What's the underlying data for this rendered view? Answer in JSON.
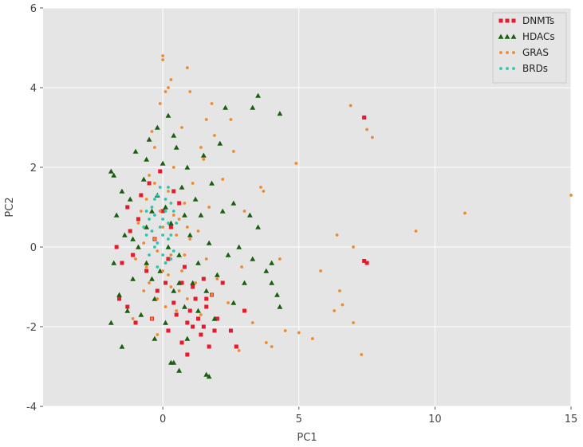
{
  "chart_data": {
    "type": "scatter",
    "title": "",
    "xlabel": "PC1",
    "ylabel": "PC2",
    "xlim": [
      -4.4,
      15
    ],
    "ylim": [
      -4,
      6
    ],
    "xticks": [
      0,
      5,
      10,
      15
    ],
    "yticks": [
      -4,
      -2,
      0,
      2,
      4,
      6
    ],
    "grid": true,
    "legend_position": "top-right",
    "background": "#e5e5e5",
    "series": [
      {
        "name": "DNMTs",
        "color": "#e8192c",
        "marker": "square",
        "points": [
          [
            -1.7,
            0.0
          ],
          [
            -1.5,
            -0.4
          ],
          [
            -1.6,
            -1.3
          ],
          [
            -1.3,
            -1.5
          ],
          [
            -1.1,
            -0.2
          ],
          [
            -0.9,
            0.7
          ],
          [
            -0.8,
            1.3
          ],
          [
            -0.6,
            -0.6
          ],
          [
            -0.5,
            1.6
          ],
          [
            -0.4,
            -1.8
          ],
          [
            -0.3,
            0.2
          ],
          [
            -0.2,
            -1.1
          ],
          [
            -0.1,
            1.9
          ],
          [
            0.1,
            -0.9
          ],
          [
            0.2,
            -2.1
          ],
          [
            0.3,
            0.5
          ],
          [
            0.4,
            -1.4
          ],
          [
            0.5,
            -1.7
          ],
          [
            0.6,
            1.1
          ],
          [
            0.7,
            -2.4
          ],
          [
            0.8,
            -0.5
          ],
          [
            0.9,
            -1.9
          ],
          [
            1.0,
            -1.6
          ],
          [
            1.1,
            -2.0
          ],
          [
            1.2,
            -1.3
          ],
          [
            1.3,
            -1.8
          ],
          [
            1.4,
            -2.2
          ],
          [
            1.5,
            -0.8
          ],
          [
            1.6,
            -1.5
          ],
          [
            1.7,
            -2.5
          ],
          [
            1.8,
            -1.2
          ],
          [
            2.0,
            -1.8
          ],
          [
            2.2,
            -0.9
          ],
          [
            2.5,
            -2.1
          ],
          [
            2.7,
            -2.5
          ],
          [
            3.0,
            -1.6
          ],
          [
            0.9,
            -2.7
          ],
          [
            1.5,
            -2.0
          ],
          [
            1.6,
            -1.3
          ],
          [
            -1.0,
            -1.9
          ],
          [
            -1.2,
            0.4
          ],
          [
            -1.3,
            1.0
          ],
          [
            0.0,
            0.9
          ],
          [
            0.2,
            -0.3
          ],
          [
            0.7,
            -0.9
          ],
          [
            0.4,
            1.4
          ],
          [
            1.1,
            -1.0
          ],
          [
            1.9,
            -2.1
          ],
          [
            7.4,
            3.25
          ],
          [
            7.5,
            -0.4
          ],
          [
            7.4,
            -0.35
          ]
        ]
      },
      {
        "name": "HDACs",
        "color": "#1a5e10",
        "marker": "triangle",
        "points": [
          [
            -1.9,
            1.9
          ],
          [
            -1.8,
            1.8
          ],
          [
            -1.7,
            0.8
          ],
          [
            -1.8,
            -0.4
          ],
          [
            -1.9,
            -1.9
          ],
          [
            -1.6,
            -1.2
          ],
          [
            -1.5,
            1.4
          ],
          [
            -1.4,
            0.3
          ],
          [
            -1.3,
            -1.6
          ],
          [
            -1.2,
            1.2
          ],
          [
            -1.1,
            -0.8
          ],
          [
            -1.0,
            2.4
          ],
          [
            -0.9,
            0.0
          ],
          [
            -0.8,
            -1.7
          ],
          [
            -0.7,
            1.7
          ],
          [
            -0.6,
            -0.4
          ],
          [
            -0.5,
            2.7
          ],
          [
            -0.4,
            0.9
          ],
          [
            -0.3,
            -1.3
          ],
          [
            -0.2,
            3.0
          ],
          [
            -0.1,
            -0.6
          ],
          [
            0.0,
            2.1
          ],
          [
            0.1,
            -1.9
          ],
          [
            0.2,
            3.3
          ],
          [
            0.3,
            0.6
          ],
          [
            0.4,
            -1.1
          ],
          [
            0.5,
            2.5
          ],
          [
            0.6,
            -0.2
          ],
          [
            0.7,
            1.5
          ],
          [
            0.8,
            -1.5
          ],
          [
            0.9,
            2.0
          ],
          [
            1.0,
            0.3
          ],
          [
            1.1,
            -0.9
          ],
          [
            1.2,
            1.2
          ],
          [
            1.3,
            -0.4
          ],
          [
            1.4,
            0.8
          ],
          [
            1.5,
            2.3
          ],
          [
            1.6,
            -1.1
          ],
          [
            1.7,
            0.1
          ],
          [
            1.8,
            1.6
          ],
          [
            2.0,
            -0.7
          ],
          [
            2.2,
            0.9
          ],
          [
            2.4,
            -0.2
          ],
          [
            2.6,
            1.1
          ],
          [
            2.8,
            0.0
          ],
          [
            3.0,
            -0.9
          ],
          [
            3.2,
            0.8
          ],
          [
            3.5,
            0.5
          ],
          [
            3.8,
            -0.6
          ],
          [
            4.0,
            -0.9
          ],
          [
            4.2,
            -1.2
          ],
          [
            4.3,
            -1.5
          ],
          [
            3.3,
            3.5
          ],
          [
            3.5,
            3.8
          ],
          [
            4.3,
            3.35
          ],
          [
            2.3,
            3.5
          ],
          [
            0.3,
            -2.9
          ],
          [
            0.6,
            -3.1
          ],
          [
            1.6,
            -3.2
          ],
          [
            1.7,
            -3.25
          ],
          [
            0.4,
            -2.9
          ],
          [
            -0.3,
            -2.3
          ],
          [
            -1.5,
            -2.5
          ],
          [
            -0.6,
            0.5
          ],
          [
            -0.2,
            1.3
          ],
          [
            0.2,
            0.0
          ],
          [
            0.8,
            0.8
          ],
          [
            -0.4,
            -0.8
          ],
          [
            0.1,
            1.0
          ],
          [
            0.6,
            -0.9
          ],
          [
            -1.1,
            0.2
          ],
          [
            1.3,
            -1.6
          ],
          [
            0.4,
            2.8
          ],
          [
            -0.6,
            2.2
          ],
          [
            0.9,
            -2.3
          ],
          [
            1.9,
            -1.8
          ],
          [
            2.6,
            -1.4
          ],
          [
            3.3,
            -0.3
          ],
          [
            4.0,
            -0.4
          ],
          [
            2.1,
            2.6
          ]
        ]
      },
      {
        "name": "GRAS",
        "color": "#f08a2a",
        "marker": "dot",
        "points": [
          [
            0.0,
            4.8
          ],
          [
            0.0,
            4.7
          ],
          [
            0.1,
            3.9
          ],
          [
            0.2,
            4.0
          ],
          [
            -0.1,
            3.6
          ],
          [
            0.3,
            4.2
          ],
          [
            0.9,
            4.5
          ],
          [
            1.0,
            3.9
          ],
          [
            1.8,
            3.6
          ],
          [
            -0.3,
            2.5
          ],
          [
            -0.5,
            1.8
          ],
          [
            -0.8,
            0.9
          ],
          [
            -1.0,
            -0.3
          ],
          [
            -0.7,
            -1.1
          ],
          [
            -0.4,
            -1.8
          ],
          [
            -0.2,
            -2.2
          ],
          [
            0.0,
            0.5
          ],
          [
            0.1,
            -0.4
          ],
          [
            0.2,
            1.4
          ],
          [
            0.3,
            -1.0
          ],
          [
            0.4,
            2.0
          ],
          [
            0.5,
            -1.6
          ],
          [
            0.6,
            0.7
          ],
          [
            0.7,
            -0.6
          ],
          [
            0.8,
            1.1
          ],
          [
            0.9,
            -1.3
          ],
          [
            1.0,
            0.2
          ],
          [
            1.1,
            1.6
          ],
          [
            1.2,
            -0.9
          ],
          [
            1.3,
            0.4
          ],
          [
            1.4,
            -1.7
          ],
          [
            1.5,
            2.2
          ],
          [
            1.6,
            -0.3
          ],
          [
            1.7,
            1.0
          ],
          [
            1.8,
            -1.2
          ],
          [
            1.9,
            2.8
          ],
          [
            2.0,
            -0.8
          ],
          [
            2.2,
            1.7
          ],
          [
            2.4,
            -1.4
          ],
          [
            2.6,
            2.4
          ],
          [
            2.8,
            -2.6
          ],
          [
            3.0,
            0.9
          ],
          [
            3.3,
            -1.9
          ],
          [
            3.6,
            1.5
          ],
          [
            4.0,
            -2.5
          ],
          [
            3.8,
            -2.4
          ],
          [
            4.5,
            -2.1
          ],
          [
            4.9,
            2.1
          ],
          [
            5.0,
            -2.15
          ],
          [
            5.5,
            -2.3
          ],
          [
            5.8,
            -0.6
          ],
          [
            6.3,
            -1.6
          ],
          [
            6.5,
            -1.1
          ],
          [
            6.6,
            -1.45
          ],
          [
            6.9,
            3.55
          ],
          [
            7.0,
            -1.9
          ],
          [
            7.3,
            -2.7
          ],
          [
            7.5,
            2.95
          ],
          [
            7.7,
            2.75
          ],
          [
            6.4,
            0.3
          ],
          [
            7.0,
            0.0
          ],
          [
            9.3,
            0.4
          ],
          [
            11.1,
            0.85
          ],
          [
            15.0,
            1.3
          ],
          [
            -0.6,
            -0.5
          ],
          [
            -0.3,
            0.2
          ],
          [
            0.2,
            -0.7
          ],
          [
            0.5,
            0.3
          ],
          [
            -0.9,
            0.6
          ],
          [
            -0.2,
            -1.3
          ],
          [
            0.6,
            -1.1
          ],
          [
            -1.1,
            -1.8
          ],
          [
            1.6,
            3.2
          ],
          [
            2.5,
            3.2
          ],
          [
            3.7,
            1.4
          ],
          [
            4.3,
            -0.3
          ],
          [
            2.9,
            -0.5
          ],
          [
            1.4,
            2.5
          ],
          [
            0.7,
            3.0
          ],
          [
            -0.4,
            2.9
          ],
          [
            -0.1,
            0.9
          ],
          [
            0.3,
            -0.2
          ],
          [
            -0.5,
            -0.9
          ],
          [
            0.1,
            -1.5
          ],
          [
            0.4,
            0.8
          ],
          [
            -0.7,
            0.1
          ],
          [
            0.8,
            -0.2
          ],
          [
            -0.3,
            1.6
          ],
          [
            0.0,
            -0.6
          ],
          [
            -0.6,
            1.2
          ],
          [
            0.9,
            0.5
          ],
          [
            -0.2,
            -0.1
          ]
        ]
      },
      {
        "name": "BRDs",
        "color": "#2ec4b0",
        "marker": "dot",
        "points": [
          [
            -0.6,
            0.3
          ],
          [
            -0.5,
            0.7
          ],
          [
            -0.4,
            1.0
          ],
          [
            -0.3,
            0.0
          ],
          [
            -0.2,
            1.3
          ],
          [
            -0.1,
            0.5
          ],
          [
            0.0,
            -0.2
          ],
          [
            0.1,
            0.9
          ],
          [
            0.2,
            0.2
          ],
          [
            0.3,
            1.1
          ],
          [
            0.4,
            -0.1
          ],
          [
            0.5,
            0.6
          ],
          [
            -0.5,
            -0.2
          ],
          [
            -0.3,
            0.8
          ],
          [
            -0.1,
            1.5
          ],
          [
            0.1,
            -0.4
          ],
          [
            0.2,
            0.6
          ],
          [
            0.3,
            0.3
          ],
          [
            -0.4,
            0.4
          ],
          [
            0.0,
            0.7
          ],
          [
            -0.2,
            0.1
          ],
          [
            0.4,
            0.9
          ],
          [
            0.1,
            1.2
          ],
          [
            -0.6,
            0.9
          ],
          [
            -0.7,
            0.5
          ],
          [
            -0.2,
            -0.5
          ],
          [
            0.3,
            -0.3
          ],
          [
            0.0,
            0.3
          ],
          [
            -0.3,
            1.2
          ],
          [
            0.2,
            1.5
          ]
        ]
      }
    ]
  }
}
